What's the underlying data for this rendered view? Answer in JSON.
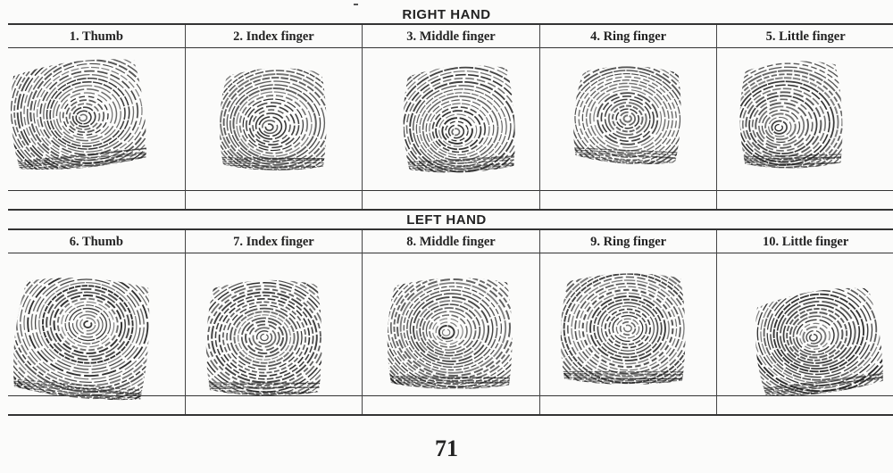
{
  "right_hand": {
    "title": "RIGHT HAND",
    "fingers": [
      {
        "label": "1. Thumb"
      },
      {
        "label": "2. Index finger"
      },
      {
        "label": "3. Middle finger"
      },
      {
        "label": "4. Ring finger"
      },
      {
        "label": "5. Little finger"
      }
    ]
  },
  "left_hand": {
    "title": "LEFT HAND",
    "fingers": [
      {
        "label": "6. Thumb"
      },
      {
        "label": "7. Index finger"
      },
      {
        "label": "8. Middle finger"
      },
      {
        "label": "9. Ring finger"
      },
      {
        "label": "10. Little finger"
      }
    ]
  },
  "page_number": "71",
  "colors": {
    "ink": "#1e1e1e",
    "paper": "#fbfbfa"
  }
}
